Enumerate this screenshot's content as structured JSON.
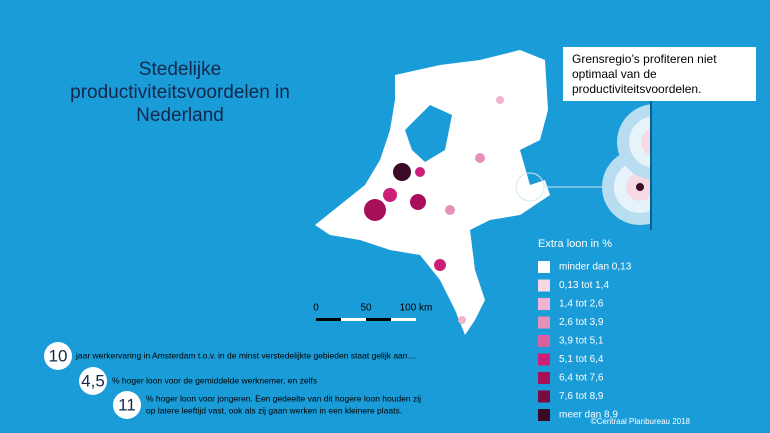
{
  "title": [
    "Stedelijke",
    "productiviteitsvoordelen in",
    "Nederland"
  ],
  "callout": [
    "Grensregio’s profiteren niet",
    "optimaal van de",
    "productiviteitsvoordelen."
  ],
  "legend": {
    "title": "Extra loon in %",
    "items": [
      {
        "label": "minder dan 0,13",
        "color": "#ffffff"
      },
      {
        "label": "0,13 tot 1,4",
        "color": "#f7d9e6"
      },
      {
        "label": "1,4 tot 2,6",
        "color": "#f0b4cf"
      },
      {
        "label": "2,6 tot 3,9",
        "color": "#e690b8"
      },
      {
        "label": "3,9 tot 5,1",
        "color": "#dc5fa0"
      },
      {
        "label": "5,1 tot 6,4",
        "color": "#cc1f78"
      },
      {
        "label": "6,4 tot 7,6",
        "color": "#a80f5a"
      },
      {
        "label": "7,6 tot 8,9",
        "color": "#7a0a42"
      },
      {
        "label": "meer dan 8,9",
        "color": "#3d0a26"
      }
    ]
  },
  "scale": [
    "0",
    "50",
    "100 km"
  ],
  "facts": [
    {
      "number": "10",
      "text": [
        "jaar werkervaring in Amsterdam t.o.v. in de minst verstedelijkte gebieden staat gelijk aan…"
      ]
    },
    {
      "number": "4,5",
      "text": [
        "% hoger loon voor de gemiddelde werknemer, en zelfs"
      ]
    },
    {
      "number": "11",
      "text": [
        "% hoger loon voor jongeren. Een gedeelte van dit hogere loon houden zij",
        "op latere leeftijd vast, ook als zij gaan werken in een kleinere plaats."
      ]
    }
  ],
  "credit": "©Centraal Planbureau 2018"
}
